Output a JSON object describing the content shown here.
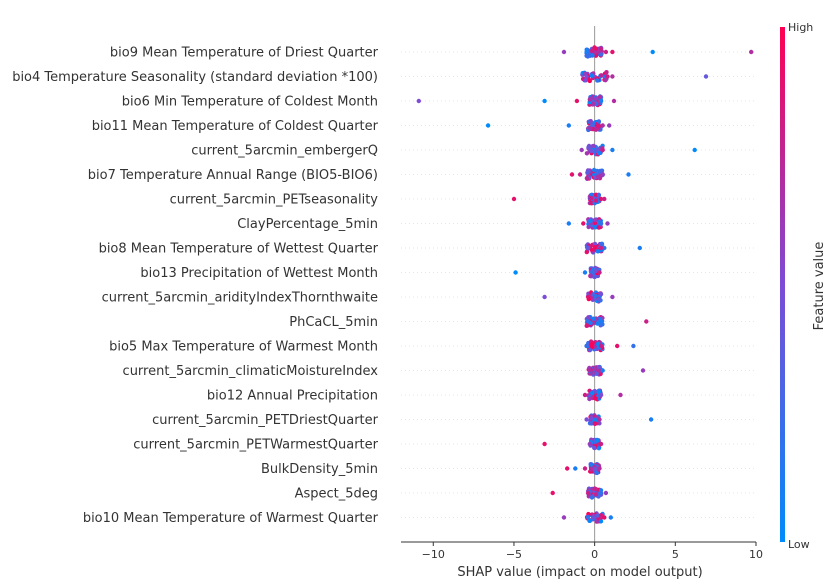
{
  "chart_data": {
    "type": "scatter",
    "subtype": "shap-beeswarm",
    "xlabel": "SHAP value (impact on model output)",
    "xlim": [
      -12,
      10
    ],
    "xticks": [
      -10,
      -5,
      0,
      5,
      10
    ],
    "grid": false,
    "colorbar": {
      "label": "Feature value",
      "high": "High",
      "low": "Low",
      "low_color": "#008bfb",
      "high_color": "#ff0052"
    },
    "features": [
      "bio9 Mean Temperature of Driest Quarter",
      "bio4 Temperature Seasonality (standard deviation *100)",
      "bio6 Min Temperature of Coldest Month",
      "bio11 Mean Temperature of Coldest Quarter",
      "current_5arcmin_embergerQ",
      "bio7 Temperature Annual Range (BIO5-BIO6)",
      "current_5arcmin_PETseasonality",
      "ClayPercentage_5min",
      "bio8 Mean Temperature of Wettest Quarter",
      "bio13 Precipitation of Wettest Month",
      "current_5arcmin_aridityIndexThornthwaite",
      "PhCaCL_5min",
      "bio5 Max Temperature of Warmest Month",
      "current_5arcmin_climaticMoistureIndex",
      "bio12 Annual Precipitation",
      "current_5arcmin_PETDriestQuarter",
      "current_5arcmin_PETWarmestQuarter",
      "BulkDensity_5min",
      "Aspect_5deg",
      "bio10 Mean Temperature of Warmest Quarter"
    ],
    "outliers": [
      [
        [
          -1.9,
          0.6
        ],
        [
          1.1,
          0.9
        ],
        [
          3.6,
          0.0
        ],
        [
          9.7,
          0.7
        ],
        [
          -0.5,
          0.1
        ],
        [
          0.7,
          0.8
        ]
      ],
      [
        [
          -0.5,
          0.5
        ],
        [
          1.1,
          0.7
        ],
        [
          6.9,
          0.4
        ],
        [
          0.8,
          0.8
        ]
      ],
      [
        [
          -10.9,
          0.5
        ],
        [
          -3.1,
          0.0
        ],
        [
          -1.1,
          0.9
        ],
        [
          0.4,
          0.1
        ],
        [
          1.2,
          0.7
        ]
      ],
      [
        [
          -6.6,
          0.0
        ],
        [
          -1.6,
          0.1
        ],
        [
          0.5,
          0.7
        ],
        [
          0.9,
          0.6
        ]
      ],
      [
        [
          -0.8,
          0.6
        ],
        [
          0.5,
          0.8
        ],
        [
          1.1,
          0.1
        ],
        [
          6.2,
          0.0
        ]
      ],
      [
        [
          -1.4,
          0.9
        ],
        [
          -0.9,
          0.8
        ],
        [
          0.5,
          0.6
        ],
        [
          2.1,
          0.1
        ]
      ],
      [
        [
          -5.0,
          0.9
        ],
        [
          0.4,
          0.9
        ],
        [
          0.6,
          0.8
        ]
      ],
      [
        [
          -1.6,
          0.1
        ],
        [
          -0.7,
          0.9
        ],
        [
          0.4,
          0.2
        ],
        [
          0.8,
          0.6
        ]
      ],
      [
        [
          -0.4,
          0.4
        ],
        [
          0.6,
          0.2
        ],
        [
          2.8,
          0.1
        ],
        [
          0.4,
          0.8
        ]
      ],
      [
        [
          -4.9,
          0.0
        ],
        [
          -0.6,
          0.1
        ],
        [
          0.3,
          0.8
        ]
      ],
      [
        [
          -3.1,
          0.5
        ],
        [
          -0.4,
          0.9
        ],
        [
          1.1,
          0.6
        ]
      ],
      [
        [
          -0.4,
          0.2
        ],
        [
          0.4,
          0.1
        ],
        [
          3.2,
          0.8
        ]
      ],
      [
        [
          -0.5,
          0.2
        ],
        [
          0.4,
          0.8
        ],
        [
          1.4,
          0.9
        ],
        [
          2.4,
          0.2
        ]
      ],
      [
        [
          -0.3,
          0.7
        ],
        [
          0.5,
          0.1
        ],
        [
          3.0,
          0.6
        ]
      ],
      [
        [
          -0.6,
          0.8
        ],
        [
          0.4,
          0.5
        ],
        [
          1.6,
          0.7
        ]
      ],
      [
        [
          -0.5,
          0.5
        ],
        [
          0.3,
          0.7
        ],
        [
          3.5,
          0.1
        ]
      ],
      [
        [
          -3.1,
          0.9
        ],
        [
          -0.3,
          0.6
        ],
        [
          0.4,
          0.8
        ]
      ],
      [
        [
          -1.7,
          0.9
        ],
        [
          -1.2,
          0.1
        ],
        [
          -0.6,
          0.8
        ],
        [
          0.3,
          0.7
        ]
      ],
      [
        [
          -2.6,
          0.9
        ],
        [
          -0.4,
          0.8
        ],
        [
          0.4,
          0.2
        ],
        [
          0.7,
          0.6
        ]
      ],
      [
        [
          -1.9,
          0.6
        ],
        [
          0.4,
          0.8
        ],
        [
          0.6,
          0.9
        ],
        [
          1.0,
          0.1
        ]
      ]
    ],
    "cluster_spread": [
      0.5,
      0.8,
      0.4,
      0.4,
      0.5,
      0.5,
      0.3,
      0.4,
      0.5,
      0.3,
      0.4,
      0.5,
      0.5,
      0.4,
      0.4,
      0.3,
      0.3,
      0.3,
      0.4,
      0.5
    ]
  }
}
